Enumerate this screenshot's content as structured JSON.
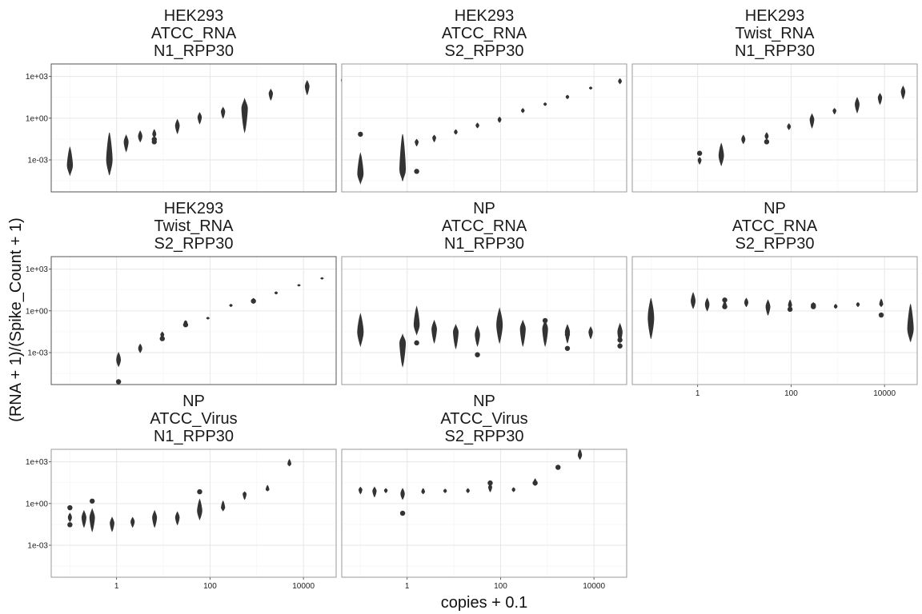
{
  "chart_data": {
    "type": "violin",
    "xlabel": "copies + 0.1",
    "ylabel": "(RNA + 1)/(Spike_Count + 1)",
    "x_scale": "log10",
    "y_scale": "log10",
    "x_ticks": [
      "1",
      "100",
      "10000"
    ],
    "y_ticks": [
      "1e+03",
      "1e+00",
      "1e-03"
    ],
    "grid": true,
    "panels": [
      {
        "title": [
          "HEK293",
          "ATCC_RNA",
          "N1_RPP30"
        ],
        "groups": [
          {
            "x": 0.1,
            "y_median": 0.0004,
            "y_min": 8e-05,
            "y_max": 0.008,
            "outliers": []
          },
          {
            "x": 0.7,
            "y_median": 0.001,
            "y_min": 8e-05,
            "y_max": 0.09,
            "outliers": []
          },
          {
            "x": 1.6,
            "y_median": 0.02,
            "y_min": 0.004,
            "y_max": 0.06,
            "outliers": []
          },
          {
            "x": 3.2,
            "y_median": 0.05,
            "y_min": 0.02,
            "y_max": 0.12,
            "outliers": []
          },
          {
            "x": 6.4,
            "y_median": 0.07,
            "y_min": 0.04,
            "y_max": 0.15,
            "outliers": [
              0.02,
              0.03
            ]
          },
          {
            "x": 20,
            "y_median": 0.3,
            "y_min": 0.08,
            "y_max": 0.8,
            "outliers": []
          },
          {
            "x": 60,
            "y_median": 1.2,
            "y_min": 0.4,
            "y_max": 2.5,
            "outliers": []
          },
          {
            "x": 190,
            "y_median": 3,
            "y_min": 1,
            "y_max": 6,
            "outliers": []
          },
          {
            "x": 550,
            "y_median": 5,
            "y_min": 0.1,
            "y_max": 25,
            "outliers": []
          },
          {
            "x": 2000,
            "y_median": 60,
            "y_min": 20,
            "y_max": 120,
            "outliers": []
          },
          {
            "x": 12000,
            "y_median": 200,
            "y_min": 50,
            "y_max": 500,
            "outliers": []
          },
          {
            "x": 70000,
            "y_median": 550,
            "y_min": 250,
            "y_max": 900,
            "outliers": []
          }
        ]
      },
      {
        "title": [
          "HEK293",
          "ATCC_RNA",
          "S2_RPP30"
        ],
        "groups": [
          {
            "x": 0.1,
            "y_median": 0.0001,
            "y_min": 2e-05,
            "y_max": 0.003,
            "outliers": [
              0.07
            ]
          },
          {
            "x": 0.8,
            "y_median": 0.0002,
            "y_min": 3e-05,
            "y_max": 0.07,
            "outliers": []
          },
          {
            "x": 1.6,
            "y_median": 0.02,
            "y_min": 0.01,
            "y_max": 0.03,
            "outliers": [
              0.00015
            ]
          },
          {
            "x": 3.8,
            "y_median": 0.04,
            "y_min": 0.02,
            "y_max": 0.06,
            "outliers": []
          },
          {
            "x": 11,
            "y_median": 0.1,
            "y_min": 0.07,
            "y_max": 0.15,
            "outliers": []
          },
          {
            "x": 32,
            "y_median": 0.3,
            "y_min": 0.2,
            "y_max": 0.45,
            "outliers": []
          },
          {
            "x": 95,
            "y_median": 0.8,
            "y_min": 0.5,
            "y_max": 1.2,
            "outliers": []
          },
          {
            "x": 300,
            "y_median": 3.5,
            "y_min": 2.5,
            "y_max": 5,
            "outliers": []
          },
          {
            "x": 900,
            "y_median": 10,
            "y_min": 8,
            "y_max": 13,
            "outliers": []
          },
          {
            "x": 2700,
            "y_median": 35,
            "y_min": 25,
            "y_max": 45,
            "outliers": []
          },
          {
            "x": 8500,
            "y_median": 150,
            "y_min": 120,
            "y_max": 180,
            "outliers": []
          },
          {
            "x": 36000,
            "y_median": 450,
            "y_min": 300,
            "y_max": 700,
            "outliers": []
          }
        ]
      },
      {
        "title": [
          "HEK293",
          "Twist_RNA",
          "N1_RPP30"
        ],
        "groups": [
          {
            "x": 1.1,
            "y_median": 0.001,
            "y_min": 0.0005,
            "y_max": 0.0015,
            "outliers": [
              0.003
            ]
          },
          {
            "x": 3.2,
            "y_median": 0.002,
            "y_min": 0.0004,
            "y_max": 0.015,
            "outliers": []
          },
          {
            "x": 9.5,
            "y_median": 0.03,
            "y_min": 0.015,
            "y_max": 0.06,
            "outliers": []
          },
          {
            "x": 30,
            "y_median": 0.05,
            "y_min": 0.03,
            "y_max": 0.09,
            "outliers": [
              0.02
            ]
          },
          {
            "x": 90,
            "y_median": 0.25,
            "y_min": 0.15,
            "y_max": 0.4,
            "outliers": []
          },
          {
            "x": 280,
            "y_median": 0.8,
            "y_min": 0.2,
            "y_max": 2,
            "outliers": []
          },
          {
            "x": 850,
            "y_median": 3.5,
            "y_min": 2,
            "y_max": 5,
            "outliers": []
          },
          {
            "x": 2600,
            "y_median": 10,
            "y_min": 2.5,
            "y_max": 30,
            "outliers": []
          },
          {
            "x": 8000,
            "y_median": 30,
            "y_min": 10,
            "y_max": 60,
            "outliers": []
          },
          {
            "x": 25000,
            "y_median": 80,
            "y_min": 25,
            "y_max": 200,
            "outliers": []
          },
          {
            "x": 75000,
            "y_median": 200,
            "y_min": 100,
            "y_max": 400,
            "outliers": []
          }
        ]
      },
      {
        "title": [
          "HEK293",
          "Twist_RNA",
          "S2_RPP30"
        ],
        "groups": [
          {
            "x": 1.1,
            "y_median": 0.0003,
            "y_min": 0.0001,
            "y_max": 0.001,
            "outliers": [
              8e-06
            ]
          },
          {
            "x": 3.2,
            "y_median": 0.002,
            "y_min": 0.001,
            "y_max": 0.004,
            "outliers": []
          },
          {
            "x": 9.5,
            "y_median": 0.02,
            "y_min": 0.01,
            "y_max": 0.03,
            "outliers": [
              0.01
            ]
          },
          {
            "x": 30,
            "y_median": 0.15,
            "y_min": 0.1,
            "y_max": 0.2,
            "outliers": [
              0.1
            ]
          },
          {
            "x": 90,
            "y_median": 0.3,
            "y_min": 0.25,
            "y_max": 0.35,
            "outliers": []
          },
          {
            "x": 280,
            "y_median": 2.5,
            "y_min": 2,
            "y_max": 3,
            "outliers": []
          },
          {
            "x": 850,
            "y_median": 6,
            "y_min": 4,
            "y_max": 8,
            "outliers": [
              5
            ]
          },
          {
            "x": 2600,
            "y_median": 20,
            "y_min": 16,
            "y_max": 24,
            "outliers": []
          },
          {
            "x": 8000,
            "y_median": 70,
            "y_min": 60,
            "y_max": 80,
            "outliers": []
          },
          {
            "x": 25000,
            "y_median": 220,
            "y_min": 190,
            "y_max": 250,
            "outliers": []
          },
          {
            "x": 75000,
            "y_median": 600,
            "y_min": 500,
            "y_max": 700,
            "outliers": []
          }
        ]
      },
      {
        "title": [
          "NP",
          "ATCC_RNA",
          "N1_RPP30"
        ],
        "groups": [
          {
            "x": 0.1,
            "y_median": 0.03,
            "y_min": 0.003,
            "y_max": 0.6,
            "outliers": []
          },
          {
            "x": 0.8,
            "y_median": 0.005,
            "y_min": 0.0001,
            "y_max": 0.02,
            "outliers": []
          },
          {
            "x": 1.6,
            "y_median": 0.1,
            "y_min": 0.02,
            "y_max": 2,
            "outliers": [
              0.005
            ]
          },
          {
            "x": 3.8,
            "y_median": 0.05,
            "y_min": 0.005,
            "y_max": 0.2,
            "outliers": []
          },
          {
            "x": 11,
            "y_median": 0.03,
            "y_min": 0.002,
            "y_max": 0.1,
            "outliers": []
          },
          {
            "x": 32,
            "y_median": 0.02,
            "y_min": 0.003,
            "y_max": 0.08,
            "outliers": [
              0.0007
            ]
          },
          {
            "x": 95,
            "y_median": 0.1,
            "y_min": 0.005,
            "y_max": 1.5,
            "outliers": []
          },
          {
            "x": 300,
            "y_median": 0.05,
            "y_min": 0.003,
            "y_max": 0.2,
            "outliers": []
          },
          {
            "x": 900,
            "y_median": 0.05,
            "y_min": 0.003,
            "y_max": 0.2,
            "outliers": [
              0.2
            ]
          },
          {
            "x": 2700,
            "y_median": 0.03,
            "y_min": 0.005,
            "y_max": 0.1,
            "outliers": [
              0.02,
              0.002
            ]
          },
          {
            "x": 8500,
            "y_median": 0.03,
            "y_min": 0.01,
            "y_max": 0.07,
            "outliers": []
          },
          {
            "x": 36000,
            "y_median": 0.03,
            "y_min": 0.005,
            "y_max": 0.12,
            "outliers": [
              0.008,
              0.003
            ]
          }
        ]
      },
      {
        "title": [
          "NP",
          "ATCC_RNA",
          "S2_RPP30"
        ],
        "groups": [
          {
            "x": 0.1,
            "y_median": 0.3,
            "y_min": 0.01,
            "y_max": 8,
            "outliers": []
          },
          {
            "x": 0.8,
            "y_median": 5,
            "y_min": 1.5,
            "y_max": 20,
            "outliers": []
          },
          {
            "x": 1.6,
            "y_median": 3,
            "y_min": 1,
            "y_max": 8,
            "outliers": []
          },
          {
            "x": 3.8,
            "y_median": 2.5,
            "y_min": 1.5,
            "y_max": 5,
            "outliers": [
              6,
              2
            ]
          },
          {
            "x": 11,
            "y_median": 4,
            "y_min": 2,
            "y_max": 8,
            "outliers": []
          },
          {
            "x": 32,
            "y_median": 2,
            "y_min": 0.5,
            "y_max": 6,
            "outliers": []
          },
          {
            "x": 95,
            "y_median": 2.5,
            "y_min": 1.5,
            "y_max": 6,
            "outliers": [
              1.3
            ]
          },
          {
            "x": 300,
            "y_median": 2.5,
            "y_min": 1.5,
            "y_max": 4,
            "outliers": [
              2,
              2.5
            ]
          },
          {
            "x": 900,
            "y_median": 2,
            "y_min": 1.5,
            "y_max": 3,
            "outliers": []
          },
          {
            "x": 2700,
            "y_median": 3,
            "y_min": 2,
            "y_max": 4,
            "outliers": []
          },
          {
            "x": 8500,
            "y_median": 3,
            "y_min": 2,
            "y_max": 7,
            "outliers": [
              0.5
            ]
          },
          {
            "x": 36000,
            "y_median": 0.05,
            "y_min": 0.006,
            "y_max": 3,
            "outliers": []
          }
        ]
      },
      {
        "title": [
          "NP",
          "ATCC_Virus",
          "N1_RPP30"
        ],
        "groups": [
          {
            "x": 0.1,
            "y_median": 0.1,
            "y_min": 0.05,
            "y_max": 0.2,
            "outliers": [
              0.5,
              0.03
            ]
          },
          {
            "x": 0.2,
            "y_median": 0.1,
            "y_min": 0.02,
            "y_max": 0.3,
            "outliers": []
          },
          {
            "x": 0.3,
            "y_median": 0.1,
            "y_min": 0.01,
            "y_max": 0.4,
            "outliers": [
              1.5
            ]
          },
          {
            "x": 0.8,
            "y_median": 0.04,
            "y_min": 0.01,
            "y_max": 0.1,
            "outliers": []
          },
          {
            "x": 2.2,
            "y_median": 0.05,
            "y_min": 0.02,
            "y_max": 0.1,
            "outliers": []
          },
          {
            "x": 6.5,
            "y_median": 0.1,
            "y_min": 0.02,
            "y_max": 0.3,
            "outliers": []
          },
          {
            "x": 20,
            "y_median": 0.1,
            "y_min": 0.03,
            "y_max": 0.25,
            "outliers": []
          },
          {
            "x": 60,
            "y_median": 0.3,
            "y_min": 0.07,
            "y_max": 2,
            "outliers": [
              7
            ]
          },
          {
            "x": 190,
            "y_median": 0.5,
            "y_min": 0.3,
            "y_max": 1.5,
            "outliers": []
          },
          {
            "x": 550,
            "y_median": 5,
            "y_min": 2,
            "y_max": 7,
            "outliers": []
          },
          {
            "x": 1700,
            "y_median": 10,
            "y_min": 8,
            "y_max": 20,
            "outliers": []
          },
          {
            "x": 5000,
            "y_median": 700,
            "y_min": 500,
            "y_max": 1500,
            "outliers": []
          }
        ]
      },
      {
        "title": [
          "NP",
          "ATCC_Virus",
          "S2_RPP30"
        ],
        "groups": [
          {
            "x": 0.1,
            "y_median": 10,
            "y_min": 5,
            "y_max": 15,
            "outliers": []
          },
          {
            "x": 0.2,
            "y_median": 8,
            "y_min": 3,
            "y_max": 15,
            "outliers": []
          },
          {
            "x": 0.35,
            "y_median": 9,
            "y_min": 6,
            "y_max": 12,
            "outliers": []
          },
          {
            "x": 0.8,
            "y_median": 5,
            "y_min": 2,
            "y_max": 12,
            "outliers": [
              0.2
            ]
          },
          {
            "x": 2.2,
            "y_median": 7,
            "y_min": 5,
            "y_max": 12,
            "outliers": []
          },
          {
            "x": 6.5,
            "y_median": 8,
            "y_min": 6,
            "y_max": 11,
            "outliers": []
          },
          {
            "x": 20,
            "y_median": 8,
            "y_min": 6,
            "y_max": 12,
            "outliers": []
          },
          {
            "x": 60,
            "y_median": 15,
            "y_min": 7,
            "y_max": 25,
            "outliers": [
              30
            ]
          },
          {
            "x": 190,
            "y_median": 10,
            "y_min": 7,
            "y_max": 14,
            "outliers": []
          },
          {
            "x": 550,
            "y_median": 30,
            "y_min": 20,
            "y_max": 60,
            "outliers": [
              30
            ]
          },
          {
            "x": 1700,
            "y_median": 400,
            "y_min": 300,
            "y_max": 600,
            "outliers": [
              400
            ]
          },
          {
            "x": 5000,
            "y_median": 3000,
            "y_min": 1500,
            "y_max": 8000,
            "outliers": []
          }
        ]
      }
    ]
  }
}
